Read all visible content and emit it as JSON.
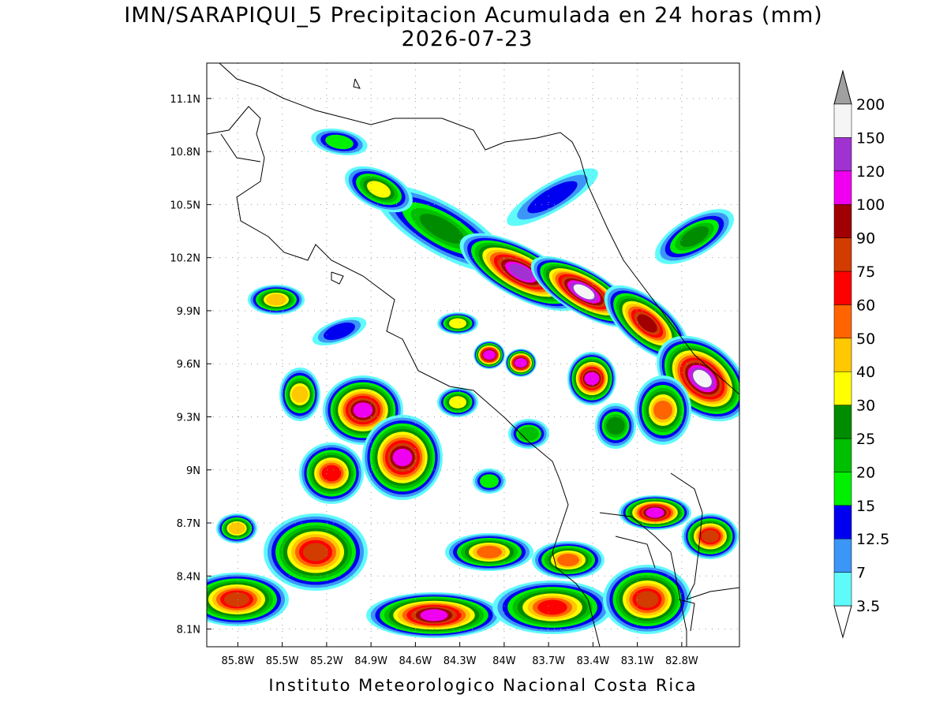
{
  "title": "IMN/SARAPIQUI_5 Precipitacion Acumulada en 24 horas (mm)",
  "date": "2026-07-23",
  "footer": "Instituto Meteorologico Nacional Costa Rica",
  "map": {
    "lonlim": [
      -86.01,
      -82.41
    ],
    "latlim": [
      8.0,
      11.3
    ],
    "grid": true,
    "lat_ticks": [
      {
        "value": 8.1,
        "label": "8.1N"
      },
      {
        "value": 8.4,
        "label": "8.4N"
      },
      {
        "value": 8.7,
        "label": "8.7N"
      },
      {
        "value": 9,
        "label": "9N"
      },
      {
        "value": 9.3,
        "label": "9.3N"
      },
      {
        "value": 9.6,
        "label": "9.6N"
      },
      {
        "value": 9.9,
        "label": "9.9N"
      },
      {
        "value": 10.2,
        "label": "10.2N"
      },
      {
        "value": 10.5,
        "label": "10.5N"
      },
      {
        "value": 10.8,
        "label": "10.8N"
      },
      {
        "value": 11.1,
        "label": "11.1N"
      }
    ],
    "lon_ticks": [
      {
        "value": -85.8,
        "label": "85.8W"
      },
      {
        "value": -85.5,
        "label": "85.5W"
      },
      {
        "value": -85.2,
        "label": "85.2W"
      },
      {
        "value": -84.9,
        "label": "84.9W"
      },
      {
        "value": -84.6,
        "label": "84.6W"
      },
      {
        "value": -84.3,
        "label": "84.3W"
      },
      {
        "value": -84,
        "label": "84W"
      },
      {
        "value": -83.7,
        "label": "83.7W"
      },
      {
        "value": -83.4,
        "label": "83.4W"
      },
      {
        "value": -83.1,
        "label": "83.1W"
      },
      {
        "value": -82.8,
        "label": "82.8W"
      }
    ]
  },
  "colorbar": {
    "levels": [
      3.5,
      7,
      12.5,
      15,
      20,
      25,
      30,
      40,
      50,
      60,
      75,
      90,
      100,
      120,
      150,
      200
    ],
    "colors": [
      "#ffffff",
      "#5ffbfb",
      "#3c96f8",
      "#0000f0",
      "#00f000",
      "#00be00",
      "#008c00",
      "#ffff00",
      "#ffc800",
      "#ff6400",
      "#ff0000",
      "#d23c00",
      "#a00000",
      "#f000f0",
      "#a032d2",
      "#f5f5f5",
      "#a0a0a0"
    ]
  }
}
